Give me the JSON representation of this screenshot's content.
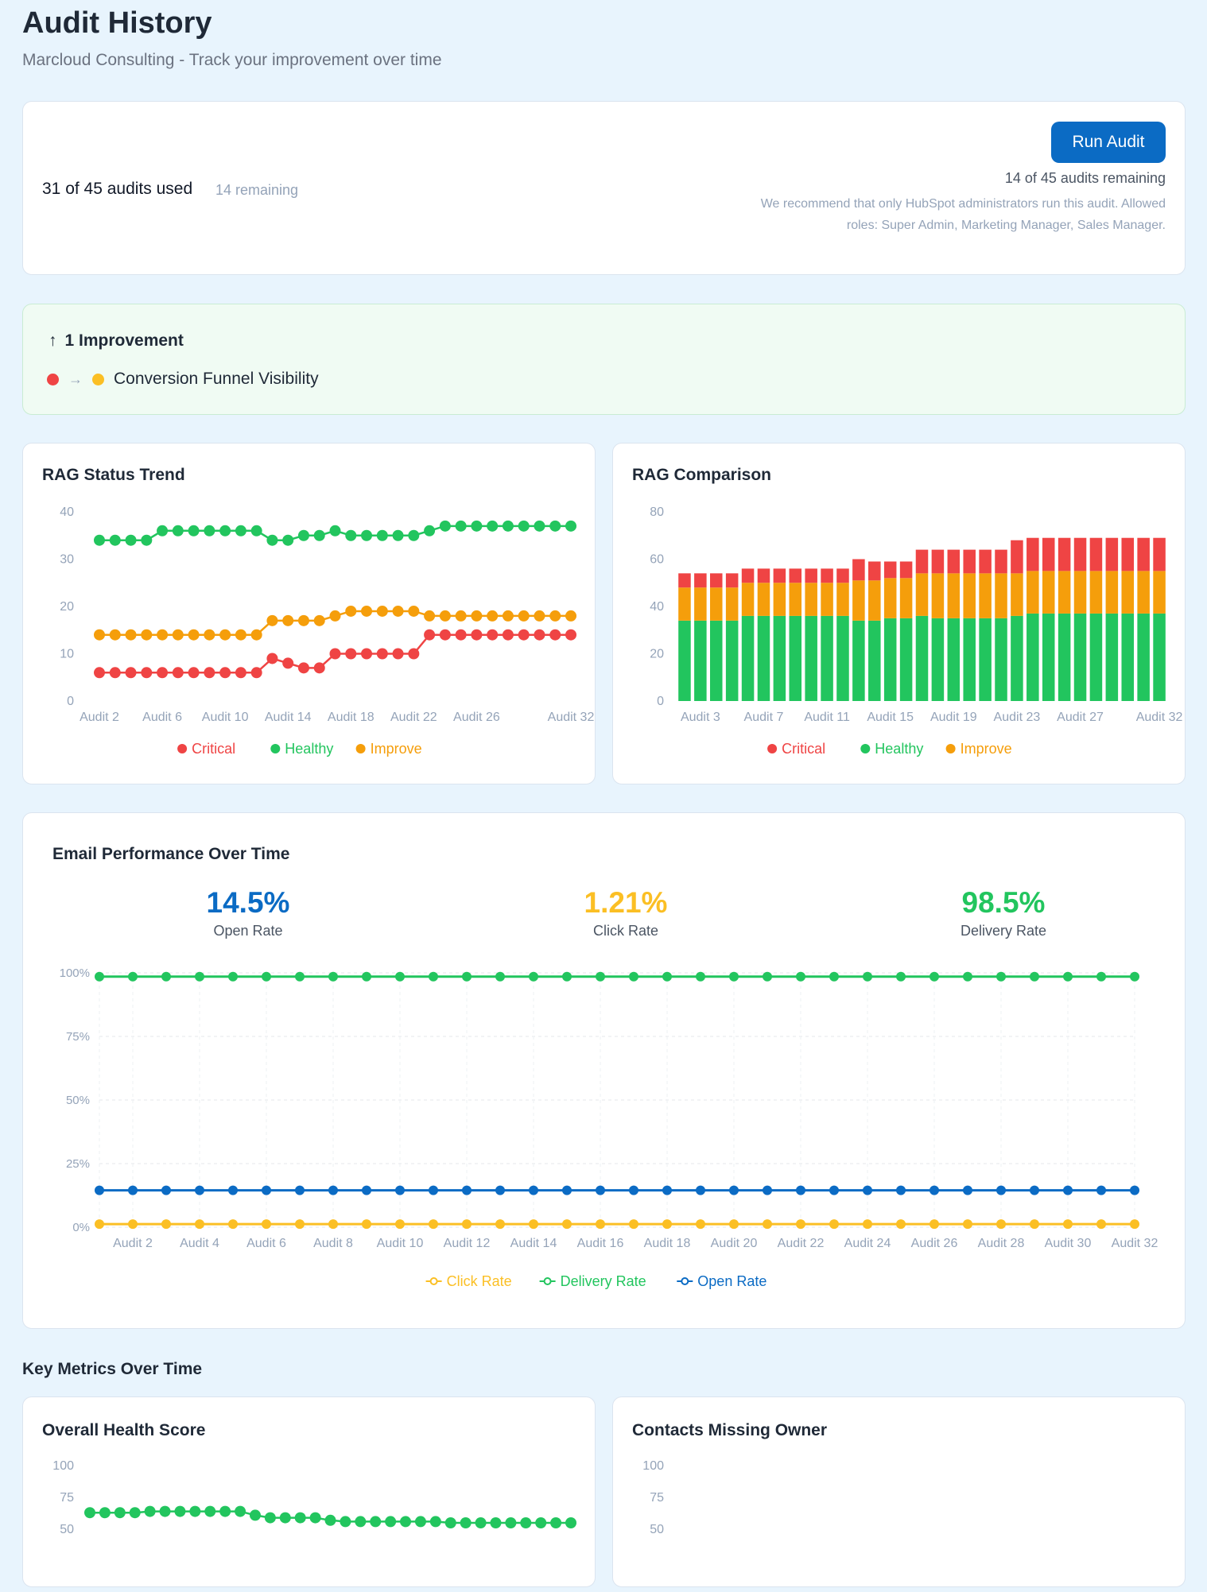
{
  "header": {
    "title": "Audit History",
    "subtitle": "Marcloud Consulting - Track your improvement over time"
  },
  "usage": {
    "used_text": "31 of 45 audits used",
    "remaining_text": "14 remaining",
    "run_button_label": "Run Audit",
    "remaining_right": "14 of 45 audits remaining",
    "recommendation": "We recommend that only HubSpot administrators run this audit. Allowed roles: Super Admin, Marketing Manager, Sales Manager."
  },
  "improvements": {
    "heading": "1 Improvement",
    "items": [
      {
        "label": "Conversion Funnel Visibility",
        "from_color": "#ef4444",
        "to_color": "#fbbf24"
      }
    ]
  },
  "colors": {
    "critical": "#ef4444",
    "healthy": "#22c55e",
    "improve": "#f59e0b",
    "open_rate": "#0b6bc4",
    "click_rate": "#fbbf24",
    "delivery_rate": "#22c55e"
  },
  "rag_trend": {
    "title": "RAG Status Trend",
    "legend": [
      "Critical",
      "Healthy",
      "Improve"
    ]
  },
  "rag_comparison": {
    "title": "RAG Comparison",
    "legend": [
      "Critical",
      "Healthy",
      "Improve"
    ]
  },
  "email_performance": {
    "title": "Email Performance Over Time",
    "stats": [
      {
        "value": "14.5%",
        "label": "Open Rate"
      },
      {
        "value": "1.21%",
        "label": "Click Rate"
      },
      {
        "value": "98.5%",
        "label": "Delivery Rate"
      }
    ],
    "legend": [
      "Click Rate",
      "Delivery Rate",
      "Open Rate"
    ]
  },
  "key_metrics": {
    "section_title": "Key Metrics Over Time",
    "cards": [
      {
        "title": "Overall Health Score"
      },
      {
        "title": "Contacts Missing Owner"
      }
    ]
  },
  "chart_data": [
    {
      "type": "line",
      "title": "RAG Status Trend",
      "x": [
        "Audit 2",
        "Audit 3",
        "Audit 4",
        "Audit 5",
        "Audit 6",
        "Audit 7",
        "Audit 8",
        "Audit 9",
        "Audit 10",
        "Audit 11",
        "Audit 12",
        "Audit 13",
        "Audit 14",
        "Audit 15",
        "Audit 16",
        "Audit 17",
        "Audit 18",
        "Audit 19",
        "Audit 20",
        "Audit 21",
        "Audit 22",
        "Audit 23",
        "Audit 24",
        "Audit 25",
        "Audit 26",
        "Audit 27",
        "Audit 28",
        "Audit 29",
        "Audit 30",
        "Audit 31",
        "Audit 32"
      ],
      "tick_labels": [
        "Audit 2",
        "Audit 6",
        "Audit 10",
        "Audit 14",
        "Audit 18",
        "Audit 22",
        "Audit 26",
        "Audit 32"
      ],
      "ylim": [
        0,
        40
      ],
      "yticks": [
        0,
        10,
        20,
        30,
        40
      ],
      "grid": false,
      "legend_position": "bottom",
      "series": [
        {
          "name": "Critical",
          "values": [
            6,
            6,
            6,
            6,
            6,
            6,
            6,
            6,
            6,
            6,
            6,
            9,
            8,
            7,
            7,
            10,
            10,
            10,
            10,
            10,
            10,
            14,
            14,
            14,
            14,
            14,
            14,
            14,
            14,
            14,
            14
          ]
        },
        {
          "name": "Healthy",
          "values": [
            34,
            34,
            34,
            34,
            36,
            36,
            36,
            36,
            36,
            36,
            36,
            34,
            34,
            35,
            35,
            36,
            35,
            35,
            35,
            35,
            35,
            36,
            37,
            37,
            37,
            37,
            37,
            37,
            37,
            37,
            37
          ]
        },
        {
          "name": "Improve",
          "values": [
            14,
            14,
            14,
            14,
            14,
            14,
            14,
            14,
            14,
            14,
            14,
            17,
            17,
            17,
            17,
            18,
            19,
            19,
            19,
            19,
            19,
            18,
            18,
            18,
            18,
            18,
            18,
            18,
            18,
            18,
            18
          ]
        }
      ]
    },
    {
      "type": "bar",
      "stacked": true,
      "title": "RAG Comparison",
      "categories": [
        "Audit 2",
        "Audit 3",
        "Audit 4",
        "Audit 5",
        "Audit 6",
        "Audit 7",
        "Audit 8",
        "Audit 9",
        "Audit 10",
        "Audit 11",
        "Audit 12",
        "Audit 13",
        "Audit 14",
        "Audit 15",
        "Audit 16",
        "Audit 17",
        "Audit 18",
        "Audit 19",
        "Audit 20",
        "Audit 21",
        "Audit 22",
        "Audit 23",
        "Audit 24",
        "Audit 25",
        "Audit 26",
        "Audit 27",
        "Audit 28",
        "Audit 29",
        "Audit 30",
        "Audit 31",
        "Audit 32"
      ],
      "tick_labels": [
        "Audit 3",
        "Audit 7",
        "Audit 11",
        "Audit 15",
        "Audit 19",
        "Audit 23",
        "Audit 27",
        "Audit 32"
      ],
      "ylim": [
        0,
        80
      ],
      "yticks": [
        0,
        20,
        40,
        60,
        80
      ],
      "grid": false,
      "legend_position": "bottom",
      "series": [
        {
          "name": "Healthy",
          "values": [
            34,
            34,
            34,
            34,
            36,
            36,
            36,
            36,
            36,
            36,
            36,
            34,
            34,
            35,
            35,
            36,
            35,
            35,
            35,
            35,
            35,
            36,
            37,
            37,
            37,
            37,
            37,
            37,
            37,
            37,
            37
          ]
        },
        {
          "name": "Improve",
          "values": [
            14,
            14,
            14,
            14,
            14,
            14,
            14,
            14,
            14,
            14,
            14,
            17,
            17,
            17,
            17,
            18,
            19,
            19,
            19,
            19,
            19,
            18,
            18,
            18,
            18,
            18,
            18,
            18,
            18,
            18,
            18
          ]
        },
        {
          "name": "Critical",
          "values": [
            6,
            6,
            6,
            6,
            6,
            6,
            6,
            6,
            6,
            6,
            6,
            9,
            8,
            7,
            7,
            10,
            10,
            10,
            10,
            10,
            10,
            14,
            14,
            14,
            14,
            14,
            14,
            14,
            14,
            14,
            14
          ]
        }
      ]
    },
    {
      "type": "line",
      "title": "Email Performance Over Time",
      "x": [
        "Audit 1",
        "Audit 2",
        "Audit 3",
        "Audit 4",
        "Audit 5",
        "Audit 6",
        "Audit 7",
        "Audit 8",
        "Audit 9",
        "Audit 10",
        "Audit 11",
        "Audit 12",
        "Audit 13",
        "Audit 14",
        "Audit 15",
        "Audit 16",
        "Audit 17",
        "Audit 18",
        "Audit 19",
        "Audit 20",
        "Audit 21",
        "Audit 22",
        "Audit 23",
        "Audit 24",
        "Audit 25",
        "Audit 26",
        "Audit 27",
        "Audit 28",
        "Audit 29",
        "Audit 30",
        "Audit 31",
        "Audit 32"
      ],
      "tick_labels": [
        "Audit 2",
        "Audit 4",
        "Audit 6",
        "Audit 8",
        "Audit 10",
        "Audit 12",
        "Audit 14",
        "Audit 16",
        "Audit 18",
        "Audit 20",
        "Audit 22",
        "Audit 24",
        "Audit 26",
        "Audit 28",
        "Audit 30",
        "Audit 32"
      ],
      "ylim": [
        0,
        100
      ],
      "yticks": [
        "0%",
        "25%",
        "50%",
        "75%",
        "100%"
      ],
      "ytick_values": [
        0,
        25,
        50,
        75,
        100
      ],
      "grid": true,
      "legend_position": "bottom",
      "series": [
        {
          "name": "Click Rate",
          "values": [
            1.2,
            1.2,
            1.2,
            1.2,
            1.2,
            1.2,
            1.2,
            1.2,
            1.2,
            1.2,
            1.2,
            1.2,
            1.2,
            1.2,
            1.2,
            1.2,
            1.2,
            1.2,
            1.2,
            1.2,
            1.2,
            1.2,
            1.2,
            1.2,
            1.2,
            1.2,
            1.2,
            1.2,
            1.2,
            1.2,
            1.2,
            1.2
          ]
        },
        {
          "name": "Delivery Rate",
          "values": [
            98.5,
            98.5,
            98.5,
            98.5,
            98.5,
            98.5,
            98.5,
            98.5,
            98.5,
            98.5,
            98.5,
            98.5,
            98.5,
            98.5,
            98.5,
            98.5,
            98.5,
            98.5,
            98.5,
            98.5,
            98.5,
            98.5,
            98.5,
            98.5,
            98.5,
            98.5,
            98.5,
            98.5,
            98.5,
            98.5,
            98.5,
            98.5
          ]
        },
        {
          "name": "Open Rate",
          "values": [
            14.5,
            14.5,
            14.5,
            14.5,
            14.5,
            14.5,
            14.5,
            14.5,
            14.5,
            14.5,
            14.5,
            14.5,
            14.5,
            14.5,
            14.5,
            14.5,
            14.5,
            14.5,
            14.5,
            14.5,
            14.5,
            14.5,
            14.5,
            14.5,
            14.5,
            14.5,
            14.5,
            14.5,
            14.5,
            14.5,
            14.5,
            14.5
          ]
        }
      ]
    },
    {
      "type": "line",
      "title": "Overall Health Score",
      "yticks": [
        50,
        75,
        100
      ],
      "ylim": [
        50,
        100
      ],
      "series": [
        {
          "name": "",
          "values": [
            63,
            63,
            63,
            63,
            64,
            64,
            64,
            64,
            64,
            64,
            64,
            61,
            59,
            59,
            59,
            59,
            57,
            56,
            56,
            56,
            56,
            56,
            56,
            56,
            55,
            55,
            55,
            55,
            55,
            55,
            55,
            55,
            55
          ]
        }
      ]
    },
    {
      "type": "line",
      "title": "Contacts Missing Owner",
      "yticks": [
        50,
        75,
        100
      ],
      "ylim": [
        50,
        100
      ],
      "series": []
    }
  ]
}
